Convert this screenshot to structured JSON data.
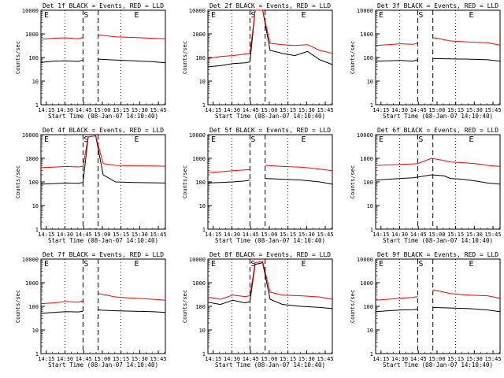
{
  "figure": {
    "start_time_label": "Start Time (08-Jan-07 14:10:40)",
    "ylabel": "Counts/sec",
    "colors": {
      "events": "#000000",
      "lld": "#ff0000",
      "background": "#ffffff"
    }
  },
  "chart_data": [
    {
      "type": "line",
      "title": "Det 1f BLACK = Events, RED = LLD",
      "xlabel": "Start Time (08-Jan-07 14:10:40)",
      "ylabel": "Counts/sec",
      "ylim": [
        1,
        10000
      ],
      "yscale": "log",
      "xlim_minutes": [
        0,
        100
      ],
      "x_ticks": [
        "14:15",
        "14:30",
        "14:45",
        "15:00",
        "15:15",
        "15:30",
        "15:45"
      ],
      "y_ticks": [
        "1",
        "10",
        "100",
        "1000",
        "10000"
      ],
      "markers": [
        {
          "label": "E",
          "position": "left"
        },
        {
          "label": "S",
          "position": "saa-start"
        },
        {
          "label": "E",
          "position": "right"
        }
      ],
      "series": [
        {
          "name": "Events",
          "color": "#000000",
          "x": [
            0,
            10,
            20,
            30,
            33.8,
            39,
            46,
            60,
            75,
            90,
            100
          ],
          "y": [
            62,
            70,
            72,
            68,
            78,
            null,
            85,
            78,
            72,
            66,
            60
          ]
        },
        {
          "name": "LLD",
          "color": "#ff0000",
          "x": [
            0,
            10,
            20,
            30,
            33.8,
            39,
            46,
            60,
            75,
            90,
            100
          ],
          "y": [
            600,
            650,
            680,
            620,
            700,
            null,
            900,
            750,
            700,
            650,
            620
          ]
        }
      ]
    },
    {
      "type": "line",
      "title": "Det 2f BLACK = Events, RED = LLD",
      "xlabel": "Start Time (08-Jan-07 14:10:40)",
      "ylabel": "Counts/sec",
      "ylim": [
        1,
        10000
      ],
      "yscale": "log",
      "xlim_minutes": [
        0,
        100
      ],
      "x_ticks": [
        "14:15",
        "14:30",
        "14:45",
        "15:00",
        "15:15",
        "15:30",
        "15:45"
      ],
      "y_ticks": [
        "1",
        "10",
        "100",
        "1000",
        "10000"
      ],
      "markers": [
        {
          "label": "E",
          "position": "left"
        },
        {
          "label": "S",
          "position": "saa-start"
        },
        {
          "label": "E",
          "position": "right"
        }
      ],
      "series": [
        {
          "name": "Events",
          "color": "#000000",
          "x": [
            0,
            10,
            20,
            30,
            33.8,
            38,
            44,
            50,
            60,
            70,
            80,
            90,
            100
          ],
          "y": [
            40,
            45,
            55,
            60,
            65,
            10000,
            10000,
            200,
            150,
            120,
            180,
            80,
            50
          ]
        },
        {
          "name": "LLD",
          "color": "#ff0000",
          "x": [
            0,
            10,
            20,
            30,
            33.8,
            38,
            44,
            50,
            60,
            70,
            80,
            90,
            100
          ],
          "y": [
            90,
            110,
            120,
            140,
            150,
            10000,
            10000,
            400,
            350,
            320,
            350,
            200,
            150
          ]
        }
      ]
    },
    {
      "type": "line",
      "title": "Det 3f BLACK = Events, RED = LLD",
      "xlabel": "Start Time (08-Jan-07 14:10:40)",
      "ylabel": "Counts/sec",
      "ylim": [
        1,
        10000
      ],
      "yscale": "log",
      "xlim_minutes": [
        0,
        100
      ],
      "x_ticks": [
        "14:15",
        "14:30",
        "14:45",
        "15:00",
        "15:15",
        "15:30",
        "15:45"
      ],
      "y_ticks": [
        "1",
        "10",
        "100",
        "1000",
        "10000"
      ],
      "markers": [
        {
          "label": "E",
          "position": "left"
        },
        {
          "label": "S",
          "position": "saa-start"
        },
        {
          "label": "E",
          "position": "right"
        }
      ],
      "series": [
        {
          "name": "Events",
          "color": "#000000",
          "x": [
            0,
            10,
            20,
            30,
            33.8,
            39,
            46,
            60,
            75,
            90,
            100
          ],
          "y": [
            70,
            72,
            75,
            70,
            80,
            null,
            90,
            88,
            85,
            80,
            70
          ]
        },
        {
          "name": "LLD",
          "color": "#ff0000",
          "x": [
            0,
            10,
            20,
            30,
            33.8,
            39,
            46,
            60,
            75,
            90,
            100
          ],
          "y": [
            320,
            350,
            380,
            360,
            400,
            null,
            700,
            500,
            450,
            420,
            330
          ]
        }
      ]
    },
    {
      "type": "line",
      "title": "Det 4f BLACK = Events, RED = LLD",
      "xlabel": "Start Time (08-Jan-07 14:10:40)",
      "ylabel": "Counts/sec",
      "ylim": [
        1,
        10000
      ],
      "yscale": "log",
      "xlim_minutes": [
        0,
        100
      ],
      "x_ticks": [
        "14:15",
        "14:30",
        "14:45",
        "15:00",
        "15:15",
        "15:30",
        "15:45"
      ],
      "y_ticks": [
        "1",
        "10",
        "100",
        "1000",
        "10000"
      ],
      "markers": [
        {
          "label": "E",
          "position": "left"
        },
        {
          "label": "S",
          "position": "saa-start"
        },
        {
          "label": "E",
          "position": "right"
        }
      ],
      "series": [
        {
          "name": "Events",
          "color": "#000000",
          "x": [
            0,
            10,
            20,
            30,
            33.8,
            38,
            44,
            50,
            60,
            75,
            90,
            100
          ],
          "y": [
            80,
            85,
            90,
            88,
            95,
            8000,
            9000,
            200,
            100,
            95,
            92,
            90
          ]
        },
        {
          "name": "LLD",
          "color": "#ff0000",
          "x": [
            0,
            10,
            20,
            30,
            33.8,
            38,
            44,
            50,
            60,
            75,
            90,
            100
          ],
          "y": [
            400,
            420,
            450,
            430,
            460,
            8000,
            9000,
            600,
            500,
            480,
            470,
            460
          ]
        }
      ]
    },
    {
      "type": "line",
      "title": "Det 5f BLACK = Events, RED = LLD",
      "xlabel": "Start Time (08-Jan-07 14:10:40)",
      "ylabel": "Counts/sec",
      "ylim": [
        1,
        10000
      ],
      "yscale": "log",
      "xlim_minutes": [
        0,
        100
      ],
      "x_ticks": [
        "14:15",
        "14:30",
        "14:45",
        "15:00",
        "15:15",
        "15:30",
        "15:45"
      ],
      "y_ticks": [
        "1",
        "10",
        "100",
        "1000",
        "10000"
      ],
      "markers": [
        {
          "label": "E",
          "position": "left"
        },
        {
          "label": "S",
          "position": "saa-start"
        },
        {
          "label": "E",
          "position": "right"
        }
      ],
      "series": [
        {
          "name": "Events",
          "color": "#000000",
          "x": [
            0,
            10,
            20,
            30,
            33.8,
            39,
            46,
            60,
            75,
            90,
            100
          ],
          "y": [
            90,
            95,
            100,
            110,
            120,
            null,
            140,
            130,
            120,
            100,
            80
          ]
        },
        {
          "name": "LLD",
          "color": "#ff0000",
          "x": [
            0,
            10,
            20,
            30,
            33.8,
            39,
            46,
            60,
            75,
            90,
            100
          ],
          "y": [
            250,
            270,
            300,
            320,
            330,
            null,
            500,
            450,
            420,
            350,
            300
          ]
        }
      ]
    },
    {
      "type": "line",
      "title": "Det 6f BLACK = Events, RED = LLD",
      "xlabel": "Start Time (08-Jan-07 14:10:40)",
      "ylabel": "Counts/sec",
      "ylim": [
        1,
        10000
      ],
      "yscale": "log",
      "xlim_minutes": [
        0,
        100
      ],
      "x_ticks": [
        "14:15",
        "14:30",
        "14:45",
        "15:00",
        "15:15",
        "15:30",
        "15:45"
      ],
      "y_ticks": [
        "1",
        "10",
        "100",
        "1000",
        "10000"
      ],
      "markers": [
        {
          "label": "E",
          "position": "left"
        },
        {
          "label": "S",
          "position": "saa-start"
        },
        {
          "label": "E",
          "position": "right"
        }
      ],
      "series": [
        {
          "name": "Events",
          "color": "#000000",
          "x": [
            0,
            10,
            20,
            30,
            33.8,
            45,
            55,
            60,
            70,
            80,
            90,
            100
          ],
          "y": [
            120,
            130,
            140,
            150,
            160,
            200,
            180,
            140,
            130,
            110,
            90,
            80
          ]
        },
        {
          "name": "LLD",
          "color": "#ff0000",
          "x": [
            0,
            10,
            20,
            30,
            33.8,
            45,
            55,
            60,
            70,
            80,
            90,
            100
          ],
          "y": [
            500,
            520,
            550,
            580,
            600,
            1000,
            800,
            700,
            650,
            600,
            500,
            450
          ]
        }
      ]
    },
    {
      "type": "line",
      "title": "Det 7f BLACK = Events, RED = LLD",
      "xlabel": "Start Time (08-Jan-07 14:10:40)",
      "ylabel": "Counts/sec",
      "ylim": [
        1,
        10000
      ],
      "yscale": "log",
      "xlim_minutes": [
        0,
        100
      ],
      "x_ticks": [
        "14:15",
        "14:30",
        "14:45",
        "15:00",
        "15:15",
        "15:30",
        "15:45"
      ],
      "y_ticks": [
        "1",
        "10",
        "100",
        "1000",
        "10000"
      ],
      "markers": [
        {
          "label": "E",
          "position": "left"
        },
        {
          "label": "S",
          "position": "saa-start"
        },
        {
          "label": "E",
          "position": "right"
        }
      ],
      "series": [
        {
          "name": "Events",
          "color": "#000000",
          "x": [
            0,
            10,
            20,
            30,
            33.8,
            39,
            46,
            60,
            75,
            90,
            100
          ],
          "y": [
            50,
            55,
            60,
            58,
            62,
            null,
            70,
            65,
            62,
            60,
            55
          ]
        },
        {
          "name": "LLD",
          "color": "#ff0000",
          "x": [
            0,
            10,
            20,
            30,
            33.8,
            39,
            46,
            60,
            75,
            90,
            100
          ],
          "y": [
            130,
            140,
            160,
            150,
            170,
            null,
            350,
            250,
            220,
            200,
            180
          ]
        }
      ]
    },
    {
      "type": "line",
      "title": "Det 8f BLACK = Events, RED = LLD",
      "xlabel": "Start Time (08-Jan-07 14:10:40)",
      "ylabel": "Counts/sec",
      "ylim": [
        1,
        10000
      ],
      "yscale": "log",
      "xlim_minutes": [
        0,
        100
      ],
      "x_ticks": [
        "14:15",
        "14:30",
        "14:45",
        "15:00",
        "15:15",
        "15:30",
        "15:45"
      ],
      "y_ticks": [
        "1",
        "10",
        "100",
        "1000",
        "10000"
      ],
      "markers": [
        {
          "label": "E",
          "position": "left"
        },
        {
          "label": "S",
          "position": "saa-start"
        },
        {
          "label": "E",
          "position": "right"
        }
      ],
      "series": [
        {
          "name": "Events",
          "color": "#000000",
          "x": [
            0,
            10,
            20,
            30,
            33.8,
            38,
            44,
            50,
            60,
            75,
            90,
            100
          ],
          "y": [
            150,
            120,
            180,
            140,
            160,
            6000,
            7000,
            200,
            120,
            100,
            90,
            80
          ]
        },
        {
          "name": "LLD",
          "color": "#ff0000",
          "x": [
            0,
            10,
            20,
            30,
            33.8,
            38,
            44,
            50,
            60,
            75,
            90,
            100
          ],
          "y": [
            250,
            200,
            300,
            260,
            280,
            7000,
            8000,
            400,
            300,
            280,
            250,
            200
          ]
        }
      ]
    },
    {
      "type": "line",
      "title": "Det 9f BLACK = Events, RED = LLD",
      "xlabel": "Start Time (08-Jan-07 14:10:40)",
      "ylabel": "Counts/sec",
      "ylim": [
        1,
        10000
      ],
      "yscale": "log",
      "xlim_minutes": [
        0,
        100
      ],
      "x_ticks": [
        "14:15",
        "14:30",
        "14:45",
        "15:00",
        "15:15",
        "15:30",
        "15:45"
      ],
      "y_ticks": [
        "1",
        "10",
        "100",
        "1000",
        "10000"
      ],
      "markers": [
        {
          "label": "E",
          "position": "left"
        },
        {
          "label": "S",
          "position": "saa-start"
        },
        {
          "label": "E",
          "position": "right"
        }
      ],
      "series": [
        {
          "name": "Events",
          "color": "#000000",
          "x": [
            0,
            10,
            20,
            30,
            33.8,
            39,
            46,
            60,
            75,
            90,
            100
          ],
          "y": [
            60,
            65,
            70,
            72,
            75,
            null,
            90,
            85,
            80,
            70,
            60
          ]
        },
        {
          "name": "LLD",
          "color": "#ff0000",
          "x": [
            0,
            10,
            20,
            30,
            33.8,
            39,
            46,
            60,
            75,
            90,
            100
          ],
          "y": [
            180,
            200,
            220,
            240,
            260,
            null,
            500,
            350,
            300,
            280,
            220
          ]
        }
      ]
    }
  ]
}
